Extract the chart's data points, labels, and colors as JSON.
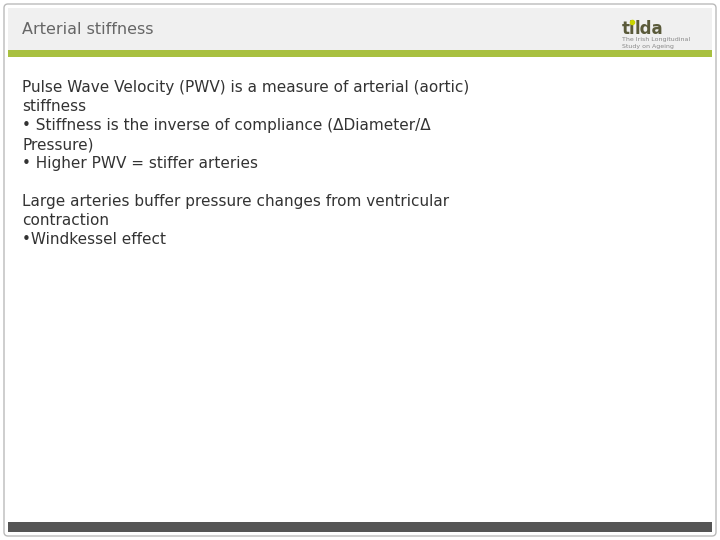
{
  "title": "Arterial stiffness",
  "title_color": "#666666",
  "title_fontsize": 11.5,
  "header_bar_color": "#a8c040",
  "border_color": "#bbbbbb",
  "background_color": "#ffffff",
  "header_bg_color": "#f0f0f0",
  "logo_text_main": "tilda",
  "logo_color": "#5a5a3a",
  "logo_dot_color": "#c8d400",
  "body_lines": [
    "Pulse Wave Velocity (PWV) is a measure of arterial (aortic)",
    "stiffness",
    "• Stiffness is the inverse of compliance (ΔDiameter/Δ",
    "Pressure)",
    "• Higher PWV = stiffer arteries",
    "",
    "Large arteries buffer pressure changes from ventricular",
    "contraction",
    "•Windkessel effect"
  ],
  "body_fontsize": 11,
  "body_color": "#333333",
  "bottom_bar_color": "#555555",
  "green_bar_color": "#a8c040"
}
